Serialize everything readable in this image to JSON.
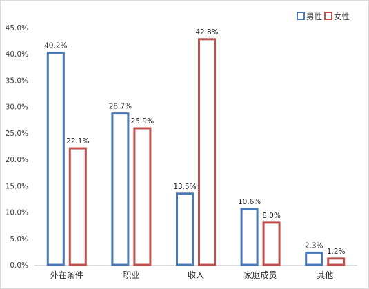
{
  "chart_data": {
    "type": "bar",
    "categories": [
      "外在条件",
      "职业",
      "收入",
      "家庭成员",
      "其他"
    ],
    "series": [
      {
        "name": "男性",
        "values": [
          40.2,
          28.7,
          13.5,
          10.6,
          2.3
        ],
        "color": "#4a78b5"
      },
      {
        "name": "女性",
        "values": [
          22.1,
          25.9,
          42.8,
          8.0,
          1.2
        ],
        "color": "#c0504d"
      }
    ],
    "data_labels": [
      [
        "40.2%",
        "28.7%",
        "13.5%",
        "10.6%",
        "2.3%"
      ],
      [
        "22.1%",
        "25.9%",
        "42.8%",
        "8.0%",
        "1.2%"
      ]
    ],
    "y_ticks": [
      "0.0%",
      "5.0%",
      "10.0%",
      "15.0%",
      "20.0%",
      "25.0%",
      "30.0%",
      "35.0%",
      "40.0%",
      "45.0%"
    ],
    "ylim": [
      0,
      45
    ],
    "grid": false,
    "legend_position": "top-right",
    "bar_style": "outlined"
  }
}
